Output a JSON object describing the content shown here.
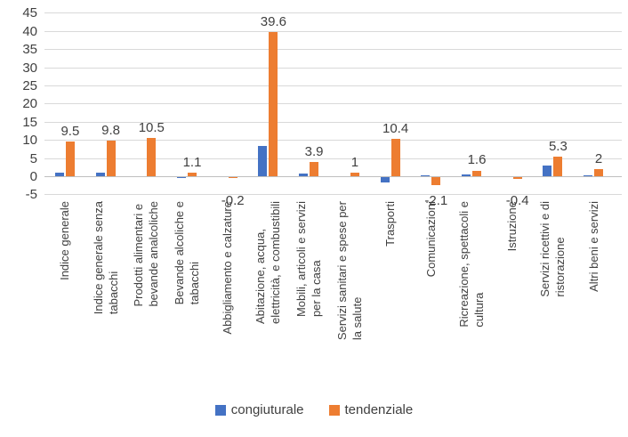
{
  "chart_data": {
    "type": "bar",
    "categories": [
      "Indice generale",
      "Indice generale senza\ntabacchi",
      "Prodotti alimentari e\nbevande analcoliche",
      "Bevande alcoliche e\ntabacchi",
      "Abbigliamento e calzature",
      "Abitazione, acqua,\nelettricità, e combustibili",
      "Mobili, articoli e servizi\nper la casa",
      "Servizi sanitari e spese per\nla salute",
      "Trasporti",
      "Comunicazioni",
      "Ricreazione, spettacoli e\ncultura",
      "Istruzione",
      "Servizi ricettivi e di\nristorazione",
      "Altri beni e servizi"
    ],
    "series": [
      {
        "name": "congiuturale",
        "color": "#4472C4",
        "values": [
          1.1,
          1.1,
          0,
          -0.2,
          0,
          8.4,
          0.7,
          0,
          -1.5,
          0.2,
          0.5,
          0,
          2.9,
          0.2
        ]
      },
      {
        "name": "tendenziale",
        "color": "#ED7D31",
        "values": [
          9.5,
          9.8,
          10.5,
          1.1,
          -0.2,
          39.6,
          3.9,
          1,
          10.4,
          -2.1,
          1.6,
          -0.4,
          5.3,
          2
        ],
        "data_labels": [
          "9.5",
          "9.8",
          "10.5",
          "1.1",
          "-0.2",
          "39.6",
          "3.9",
          "1",
          "10.4",
          "-2.1",
          "1.6",
          "-0.4",
          "5.3",
          "2"
        ]
      }
    ],
    "title": "",
    "xlabel": "",
    "ylabel": "",
    "ylim": [
      -5,
      45
    ],
    "ytick_step": 5,
    "ytick_labels": [
      "45",
      "40",
      "35",
      "30",
      "25",
      "20",
      "15",
      "10",
      "5",
      "0",
      "-5"
    ],
    "grid": true,
    "legend_position": "bottom"
  },
  "colors": {
    "bar_blue": "#4472C4",
    "bar_orange": "#ED7D31",
    "gridline": "#D9D9D9",
    "axis_line": "#BFBFBF",
    "text": "#404040"
  }
}
